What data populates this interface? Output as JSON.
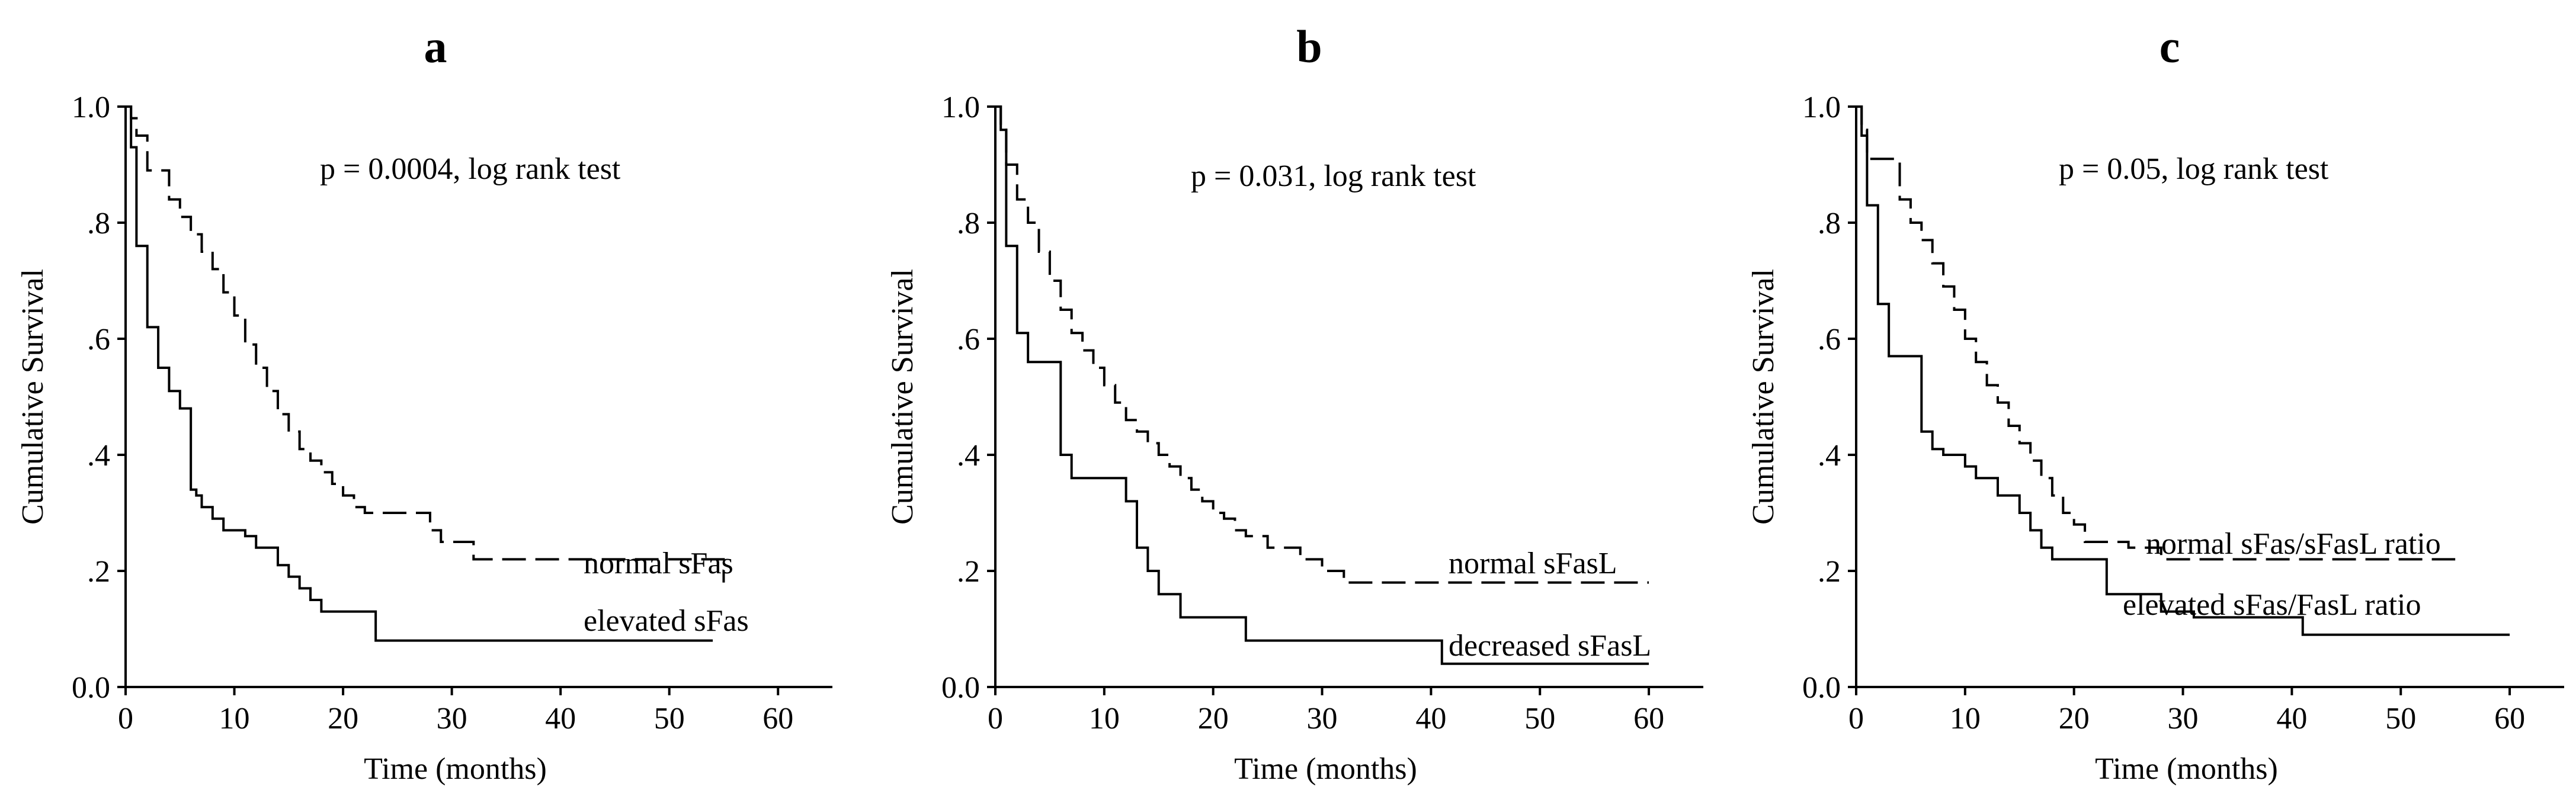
{
  "chart_data": [
    {
      "type": "line",
      "panel": "a",
      "ylabel": "Cumulative  Survival",
      "xlabel": "Time (months)",
      "pvalue": "p = 0.0004, log rank test",
      "xlim": [
        0,
        65
      ],
      "ylim": [
        0,
        1
      ],
      "xticks": [
        0,
        10,
        20,
        30,
        40,
        50,
        60
      ],
      "xtick_labels": [
        "0",
        "10",
        "20",
        "30",
        "40",
        "50",
        "60"
      ],
      "yticks": [
        0,
        0.2,
        0.4,
        0.6,
        0.8,
        1.0
      ],
      "ytick_labels": [
        "0.0",
        ".2",
        ".4",
        ".6",
        ".8",
        "1.0"
      ],
      "series": [
        {
          "name": "normal sFas",
          "style": "dashed",
          "x": [
            0,
            0.5,
            1,
            2,
            4,
            5,
            6,
            7,
            8,
            9,
            10,
            11,
            12,
            13,
            14,
            15,
            16,
            17,
            18,
            19,
            20,
            21,
            22,
            23,
            26,
            28,
            29,
            32,
            55
          ],
          "y": [
            1.0,
            0.98,
            0.95,
            0.89,
            0.84,
            0.81,
            0.78,
            0.75,
            0.72,
            0.68,
            0.64,
            0.59,
            0.55,
            0.51,
            0.47,
            0.44,
            0.41,
            0.39,
            0.37,
            0.35,
            0.33,
            0.31,
            0.3,
            0.3,
            0.3,
            0.27,
            0.25,
            0.22,
            0.18
          ]
        },
        {
          "name": "elevated sFas",
          "style": "solid",
          "x": [
            0,
            0.5,
            1,
            2,
            3,
            4,
            5,
            6,
            6.5,
            7,
            8,
            9,
            10,
            11,
            12,
            14,
            15,
            16,
            17,
            18,
            20,
            23,
            54
          ],
          "y": [
            1.0,
            0.93,
            0.76,
            0.62,
            0.55,
            0.51,
            0.48,
            0.34,
            0.33,
            0.31,
            0.29,
            0.27,
            0.27,
            0.26,
            0.24,
            0.21,
            0.19,
            0.17,
            0.15,
            0.13,
            0.13,
            0.08,
            0.08
          ]
        }
      ]
    },
    {
      "type": "line",
      "panel": "b",
      "ylabel": "Cumulative  Survival",
      "xlabel": "Time (months)",
      "pvalue": "p = 0.031, log rank test",
      "xlim": [
        0,
        65
      ],
      "ylim": [
        0,
        1
      ],
      "xticks": [
        0,
        10,
        20,
        30,
        40,
        50,
        60
      ],
      "xtick_labels": [
        "0",
        "10",
        "20",
        "30",
        "40",
        "50",
        "60"
      ],
      "yticks": [
        0,
        0.2,
        0.4,
        0.6,
        0.8,
        1.0
      ],
      "ytick_labels": [
        "0.0",
        ".2",
        ".4",
        ".6",
        ".8",
        "1.0"
      ],
      "series": [
        {
          "name": "normal sFasL",
          "style": "dashed",
          "x": [
            0,
            0.5,
            1,
            2,
            3,
            4,
            5,
            6,
            7,
            8,
            9,
            10,
            11,
            12,
            13,
            14,
            15,
            16,
            17,
            18,
            19,
            20,
            21,
            22,
            23,
            25,
            28,
            30,
            32,
            60
          ],
          "y": [
            1.0,
            0.96,
            0.9,
            0.84,
            0.8,
            0.75,
            0.7,
            0.65,
            0.61,
            0.58,
            0.55,
            0.52,
            0.49,
            0.46,
            0.44,
            0.42,
            0.4,
            0.38,
            0.36,
            0.34,
            0.32,
            0.3,
            0.29,
            0.27,
            0.26,
            0.24,
            0.22,
            0.2,
            0.18,
            0.18
          ]
        },
        {
          "name": "decreased sFasL",
          "style": "solid",
          "x": [
            0,
            0.5,
            1,
            2,
            3,
            5,
            6,
            7,
            10,
            12,
            13,
            14,
            15,
            17,
            23,
            41,
            60
          ],
          "y": [
            1.0,
            0.96,
            0.76,
            0.61,
            0.56,
            0.56,
            0.4,
            0.36,
            0.36,
            0.32,
            0.24,
            0.2,
            0.16,
            0.12,
            0.08,
            0.04,
            0.04
          ]
        }
      ]
    },
    {
      "type": "line",
      "panel": "c",
      "ylabel": "Cumulative  Survival",
      "xlabel": "Time (months)",
      "pvalue": "p = 0.05, log rank test",
      "xlim": [
        0,
        65
      ],
      "ylim": [
        0,
        1
      ],
      "xticks": [
        0,
        10,
        20,
        30,
        40,
        50,
        60
      ],
      "xtick_labels": [
        "0",
        "10",
        "20",
        "30",
        "40",
        "50",
        "60"
      ],
      "yticks": [
        0,
        0.2,
        0.4,
        0.6,
        0.8,
        1.0
      ],
      "ytick_labels": [
        "0.0",
        ".2",
        ".4",
        ".6",
        ".8",
        "1.0"
      ],
      "series": [
        {
          "name": "normal sFas/sFasL ratio",
          "style": "dashed",
          "x": [
            0,
            0.5,
            1,
            4,
            5,
            6,
            7,
            8,
            9,
            10,
            11,
            12,
            13,
            14,
            15,
            16,
            17,
            18,
            19,
            20,
            21,
            22,
            23,
            25,
            28,
            55
          ],
          "y": [
            1.0,
            0.96,
            0.91,
            0.84,
            0.8,
            0.77,
            0.73,
            0.69,
            0.65,
            0.6,
            0.56,
            0.52,
            0.49,
            0.45,
            0.42,
            0.39,
            0.36,
            0.33,
            0.3,
            0.28,
            0.25,
            0.25,
            0.25,
            0.24,
            0.22,
            0.22
          ]
        },
        {
          "name": "elevated sFas/FasL ratio",
          "style": "solid",
          "x": [
            0,
            0.5,
            1,
            2,
            3,
            5,
            6,
            7,
            8,
            10,
            11,
            13,
            15,
            16,
            17,
            18,
            20,
            23,
            28,
            31,
            41,
            60
          ],
          "y": [
            1.0,
            0.95,
            0.83,
            0.66,
            0.57,
            0.57,
            0.44,
            0.41,
            0.4,
            0.38,
            0.36,
            0.33,
            0.3,
            0.27,
            0.24,
            0.22,
            0.22,
            0.16,
            0.13,
            0.12,
            0.09,
            0.09
          ]
        }
      ]
    }
  ]
}
